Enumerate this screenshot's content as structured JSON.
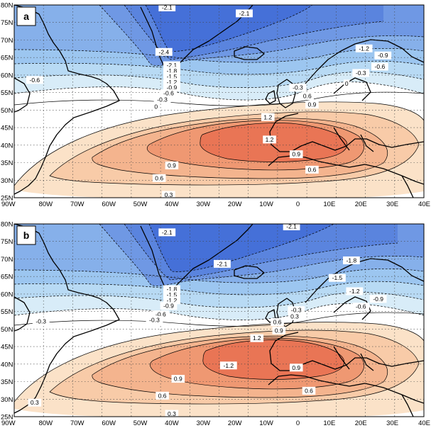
{
  "panels": [
    {
      "label": "a",
      "contour_labels": [
        {
          "text": "-2.1",
          "lon": -41.5,
          "lat": 79.3
        },
        {
          "text": "-2.1",
          "lon": -17.0,
          "lat": 77.6
        },
        {
          "text": "-2.4",
          "lon": -42.5,
          "lat": 66.6
        },
        {
          "text": "-2.1",
          "lon": -40.0,
          "lat": 62.8
        },
        {
          "text": "-1.8",
          "lon": -40.0,
          "lat": 61.2
        },
        {
          "text": "-1.5",
          "lon": -40.0,
          "lat": 59.6
        },
        {
          "text": "-1.2",
          "lon": -40.0,
          "lat": 58.0
        },
        {
          "text": "-0.9",
          "lon": -40.0,
          "lat": 56.4
        },
        {
          "text": "-0.6",
          "lon": -41.0,
          "lat": 54.8
        },
        {
          "text": "-0.3",
          "lon": -43.0,
          "lat": 53.0
        },
        {
          "text": "0",
          "lon": -45.0,
          "lat": 51.0
        },
        {
          "text": "-0.6",
          "lon": -83.5,
          "lat": 58.6
        },
        {
          "text": "-1.2",
          "lon": 21.0,
          "lat": 67.6
        },
        {
          "text": "-0.9",
          "lon": 27.0,
          "lat": 65.6
        },
        {
          "text": "-0.6",
          "lon": 26.0,
          "lat": 62.4
        },
        {
          "text": "-0.3",
          "lon": 20.0,
          "lat": 60.6
        },
        {
          "text": "0",
          "lon": 15.5,
          "lat": 57.6
        },
        {
          "text": "-0.3",
          "lon": 0.0,
          "lat": 56.4
        },
        {
          "text": "0.6",
          "lon": 3.0,
          "lat": 54.0
        },
        {
          "text": "0.9",
          "lon": 4.5,
          "lat": 51.6
        },
        {
          "text": "1.2",
          "lon": -9.5,
          "lat": 48.0
        },
        {
          "text": "1.2",
          "lon": -9.0,
          "lat": 41.6
        },
        {
          "text": "0.9",
          "lon": -0.5,
          "lat": 37.4
        },
        {
          "text": "0.9",
          "lon": -40.0,
          "lat": 34.2
        },
        {
          "text": "0.6",
          "lon": -44.0,
          "lat": 30.6
        },
        {
          "text": "0.6",
          "lon": 4.5,
          "lat": 33.0
        },
        {
          "text": "0.3",
          "lon": -41.0,
          "lat": 25.8
        }
      ]
    },
    {
      "label": "b",
      "contour_labels": [
        {
          "text": "-2.1",
          "lon": -41.5,
          "lat": 77.6
        },
        {
          "text": "-2.1",
          "lon": -2.0,
          "lat": 79.3
        },
        {
          "text": "-2.1",
          "lon": -24.0,
          "lat": 68.6
        },
        {
          "text": "-1.8",
          "lon": -40.0,
          "lat": 61.4
        },
        {
          "text": "-1.5",
          "lon": -40.0,
          "lat": 59.8
        },
        {
          "text": "-1.2",
          "lon": -40.0,
          "lat": 58.2
        },
        {
          "text": "-0.9",
          "lon": -41.0,
          "lat": 56.6
        },
        {
          "text": "-0.6",
          "lon": -43.5,
          "lat": 54.2
        },
        {
          "text": "-0.3",
          "lon": -45.5,
          "lat": 52.6
        },
        {
          "text": "-0.3",
          "lon": -81.5,
          "lat": 52.2
        },
        {
          "text": "0.3",
          "lon": -83.5,
          "lat": 29.0
        },
        {
          "text": "-1.8",
          "lon": 17.0,
          "lat": 69.6
        },
        {
          "text": "-1.5",
          "lon": 12.5,
          "lat": 64.6
        },
        {
          "text": "-1.2",
          "lon": 18.0,
          "lat": 60.8
        },
        {
          "text": "-0.9",
          "lon": 25.5,
          "lat": 58.6
        },
        {
          "text": "-0.6",
          "lon": 20.0,
          "lat": 56.4
        },
        {
          "text": "-0.3",
          "lon": -0.5,
          "lat": 55.4
        },
        {
          "text": "0.3",
          "lon": -1.0,
          "lat": 53.6
        },
        {
          "text": "0.6",
          "lon": -6.5,
          "lat": 52.0
        },
        {
          "text": "0.9",
          "lon": -6.0,
          "lat": 49.6
        },
        {
          "text": "1.2",
          "lon": -13.0,
          "lat": 47.4
        },
        {
          "text": "-1.2",
          "lon": -22.0,
          "lat": 39.6
        },
        {
          "text": "0.9",
          "lon": -0.5,
          "lat": 39.0
        },
        {
          "text": "0.9",
          "lon": -38.0,
          "lat": 35.8
        },
        {
          "text": "0.6",
          "lon": -43.0,
          "lat": 31.0
        },
        {
          "text": "0.6",
          "lon": 3.5,
          "lat": 32.4
        },
        {
          "text": "0.3",
          "lon": -40.0,
          "lat": 25.8
        }
      ]
    }
  ],
  "x_ticks": [
    "90W",
    "80W",
    "70W",
    "60W",
    "50W",
    "40W",
    "30W",
    "20W",
    "10W",
    "0",
    "10E",
    "20E",
    "30E",
    "40E"
  ],
  "y_ticks": [
    "80N",
    "75N",
    "70N",
    "65N",
    "60N",
    "55N",
    "50N",
    "45N",
    "40N",
    "35N",
    "30N",
    "25N"
  ],
  "shading_colors": {
    "low_center": "#3a62dc",
    "low_mid": "#8fb2ee",
    "low_edge": "#d8ecf8",
    "high_center": "#e97555",
    "high_mid": "#f4b48e",
    "high_edge": "#fbe2c8"
  }
}
